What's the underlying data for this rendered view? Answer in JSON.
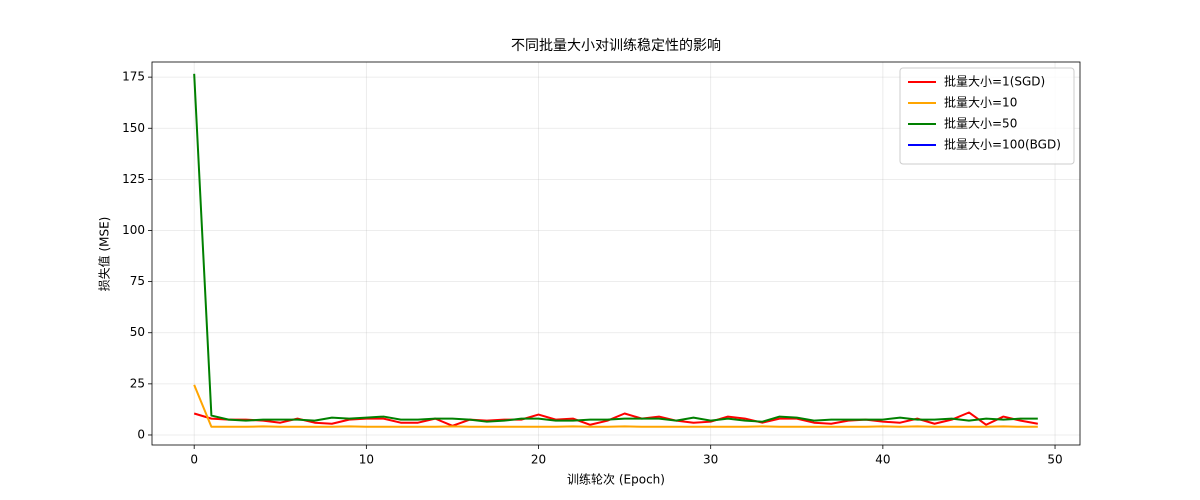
{
  "chart_data": {
    "type": "line",
    "title": "不同批量大小对训练稳定性的影响",
    "x_label": "训练轮次 (Epoch)",
    "y_label": "损失值 (MSE)",
    "x": [
      0,
      1,
      2,
      3,
      4,
      5,
      6,
      7,
      8,
      9,
      10,
      11,
      12,
      13,
      14,
      15,
      16,
      17,
      18,
      19,
      20,
      21,
      22,
      23,
      24,
      25,
      26,
      27,
      28,
      29,
      30,
      31,
      32,
      33,
      34,
      35,
      36,
      37,
      38,
      39,
      40,
      41,
      42,
      43,
      44,
      45,
      46,
      47,
      48,
      49
    ],
    "series": [
      {
        "name": "批量大小=1(SGD)",
        "color": "#ff0000",
        "values": [
          10.5,
          8,
          7.5,
          7.5,
          7,
          6,
          8,
          6,
          5.5,
          7.5,
          8,
          8,
          6,
          6,
          8,
          4.5,
          7.5,
          7,
          7.5,
          7.5,
          10,
          7.5,
          8,
          5,
          7,
          10.5,
          8,
          9,
          7,
          6,
          6.5,
          9,
          8,
          6,
          8,
          8,
          6,
          5.5,
          7,
          7.5,
          6.5,
          6,
          8,
          5.5,
          7.5,
          11,
          5,
          9,
          7,
          5.5
        ]
      },
      {
        "name": "批量大小=10",
        "color": "#ffa500",
        "values": [
          24.5,
          4,
          4,
          4,
          4.2,
          4,
          4,
          4,
          4,
          4.2,
          4,
          4,
          4,
          4,
          4,
          4.2,
          4,
          4,
          4,
          4,
          4,
          4,
          4.2,
          4,
          4,
          4.2,
          4,
          4,
          4,
          4,
          4,
          4,
          4,
          4.2,
          4,
          4,
          4,
          4,
          4,
          4,
          4.2,
          4,
          4.2,
          4,
          4,
          4,
          4,
          4.2,
          4,
          4
        ]
      },
      {
        "name": "批量大小=50",
        "color": "#008000",
        "values": [
          176.6,
          9.5,
          7.5,
          7,
          7.5,
          7.5,
          7.5,
          7,
          8.5,
          8,
          8.5,
          9,
          7.5,
          7.5,
          8,
          8,
          7.5,
          6.5,
          7,
          8,
          8,
          7,
          7,
          7.5,
          7.5,
          8,
          8,
          8,
          7,
          8.5,
          7,
          8,
          7,
          6.5,
          9,
          8.5,
          7,
          7.5,
          7.5,
          7.5,
          7.5,
          8.5,
          7.5,
          7.5,
          8,
          7,
          8,
          7.5,
          8,
          8
        ]
      },
      {
        "name": "批量大小=100(BGD)",
        "color": "#0000ff",
        "values": [
          null,
          null,
          null,
          null,
          null,
          null,
          null,
          null,
          null,
          null,
          null,
          null,
          null,
          null,
          null,
          null,
          null,
          null,
          null,
          null,
          null,
          null,
          null,
          null,
          null,
          null,
          null,
          null,
          null,
          null,
          null,
          null,
          null,
          null,
          null,
          null,
          null,
          null,
          null,
          null,
          null,
          null,
          null,
          null,
          null,
          null,
          null,
          null,
          null,
          null
        ]
      }
    ],
    "xlim": [
      -2.45,
      51.45
    ],
    "xticks": [
      0,
      10,
      20,
      30,
      40,
      50
    ],
    "ylim": [
      -4.9,
      182.4
    ],
    "yticks": [
      0,
      25,
      50,
      75,
      100,
      125,
      150,
      175
    ],
    "grid": true,
    "legend": "upper-right"
  }
}
